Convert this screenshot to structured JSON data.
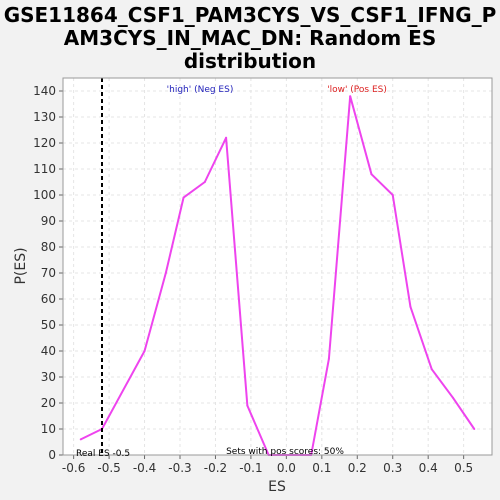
{
  "chart_data": {
    "type": "line",
    "title_lines": [
      "GSE11864_CSF1_PAM3CYS_VS_CSF1_IFNG_P",
      "AM3CYS_IN_MAC_DN: Random ES",
      "distribution"
    ],
    "xlabel": "ES",
    "ylabel": "P(ES)",
    "xlim": [
      -0.63,
      0.58
    ],
    "ylim": [
      0,
      145
    ],
    "x_ticks": [
      -0.6,
      -0.5,
      -0.4,
      -0.3,
      -0.2,
      -0.1,
      0.0,
      0.1,
      0.2,
      0.3,
      0.4,
      0.5
    ],
    "x_tick_labels": [
      "-0.6",
      "-0.5",
      "-0.4",
      "-0.3",
      "-0.2",
      "-0.1",
      "0.0",
      "0.1",
      "0.2",
      "0.3",
      "0.4",
      "0.5"
    ],
    "y_ticks": [
      0,
      10,
      20,
      30,
      40,
      50,
      60,
      70,
      80,
      90,
      100,
      110,
      120,
      130,
      140
    ],
    "y_tick_labels": [
      "0",
      "10",
      "20",
      "30",
      "40",
      "50",
      "60",
      "70",
      "80",
      "90",
      "100",
      "110",
      "120",
      "130",
      "140"
    ],
    "grid": true,
    "series": [
      {
        "color": "#ee44ee",
        "x": [
          -0.58,
          -0.52,
          -0.4,
          -0.34,
          -0.29,
          -0.23,
          -0.17,
          -0.11,
          -0.05,
          0.01,
          0.07,
          0.12,
          0.18,
          0.24,
          0.3,
          0.35,
          0.41,
          0.47,
          0.53
        ],
        "y": [
          6,
          10,
          40,
          70,
          99,
          105,
          122,
          19,
          0,
          0,
          0,
          37,
          138,
          108,
          100,
          57,
          33,
          22,
          10
        ]
      }
    ],
    "real_es": {
      "x": -0.52,
      "label": "Real ES -0.5"
    },
    "annotations": {
      "high_label": "'high' (Neg ES)",
      "high_color": "#2222bb",
      "low_label": "'low' (Pos ES)",
      "low_color": "#dd2222",
      "sets_label": "Sets with pos scores: 50%"
    }
  }
}
